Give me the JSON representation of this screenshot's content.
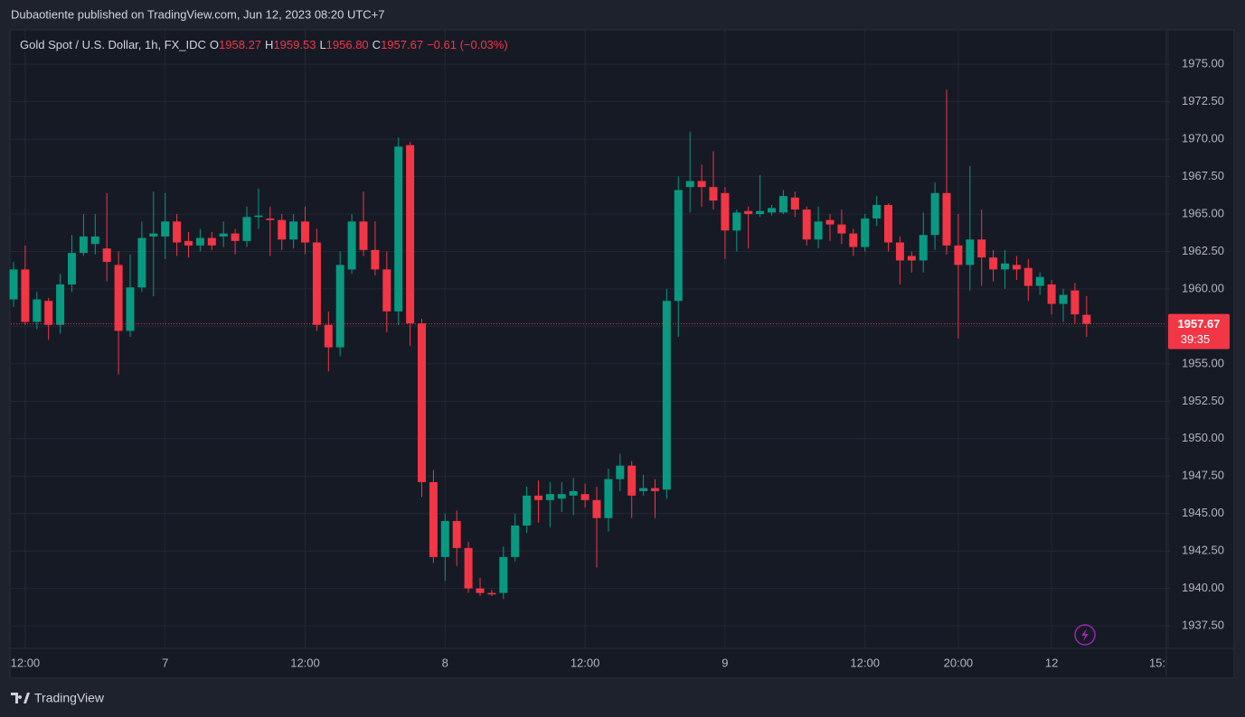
{
  "chart_data": {
    "type": "candlestick",
    "attribution": "Dubaotiente published on TradingView.com, Jun 12, 2023 08:20 UTC+7",
    "title": "Gold Spot / U.S. Dollar, 1h, FX_IDC",
    "ohlc_legend": [
      {
        "key": "O",
        "label": "1958.27"
      },
      {
        "key": "H",
        "label": "1959.53"
      },
      {
        "key": "L",
        "label": "1956.80"
      },
      {
        "key": "C",
        "label": "1957.67"
      }
    ],
    "change_label": "−0.61 (−0.03%)",
    "countdown": "39:35",
    "brand": "TradingView",
    "up_color": "#089981",
    "down_color": "#f23645",
    "categories": [
      null,
      "12:00",
      null,
      null,
      null,
      null,
      null,
      null,
      null,
      null,
      null,
      null,
      null,
      "7",
      null,
      null,
      null,
      null,
      null,
      null,
      null,
      null,
      null,
      null,
      null,
      "12:00",
      null,
      null,
      null,
      null,
      null,
      null,
      null,
      null,
      null,
      null,
      null,
      "8",
      null,
      null,
      null,
      null,
      null,
      null,
      null,
      null,
      null,
      null,
      null,
      "12:00",
      null,
      null,
      null,
      null,
      null,
      null,
      null,
      null,
      null,
      null,
      null,
      "9",
      null,
      null,
      null,
      null,
      null,
      null,
      null,
      null,
      null,
      null,
      null,
      "12:00",
      null,
      null,
      null,
      null,
      null,
      null,
      null,
      "20:00",
      null,
      null,
      null,
      null,
      null,
      null,
      null,
      "12",
      null,
      null,
      null,
      null,
      null,
      null,
      null,
      null,
      null,
      "15:"
    ],
    "open": [
      1959.3,
      1961.3,
      1957.8,
      1959.2,
      1957.6,
      1960.3,
      1962.4,
      1963,
      1962.7,
      1961.6,
      1957.2,
      1960.1,
      1963.5,
      1963.5,
      1964.5,
      1963.2,
      1962.9,
      1963.4,
      1963.5,
      1963.7,
      1963.2,
      1964.8,
      1964.7,
      1964.6,
      1963.3,
      1964.5,
      1963.1,
      1957.6,
      1956.1,
      1961.3,
      1964.5,
      1962.6,
      1961.3,
      1958.5,
      1969.6,
      1957.7,
      1947.1,
      1942.1,
      1944.5,
      1942.7,
      1940,
      1939.7,
      1939.7,
      1942.1,
      1944.2,
      1946.2,
      1945.9,
      1946,
      1946.2,
      1946.3,
      1945.9,
      1944.7,
      1947.3,
      1948.2,
      1946.5,
      1946.7,
      1946.6,
      1959.2,
      1966.8,
      1967.2,
      1966.8,
      1966.4,
      1963.9,
      1965.2,
      1965,
      1965.1,
      1965.1,
      1966.1,
      1965.3,
      1963.3,
      1964.6,
      1964.3,
      1963.7,
      1962.8,
      1964.7,
      1965.6,
      1963.1,
      1962.2,
      1961.9,
      1963.6,
      1966.4,
      1962.9,
      1961.6,
      1963.3,
      1962.1,
      1961.3,
      1961.6,
      1961.4,
      1960.2,
      1960.3,
      1959,
      1959.9,
      1958.27,
      null,
      null,
      null,
      null,
      null,
      null,
      null
    ],
    "high": [
      1961.8,
      1962.9,
      1959.8,
      1959.4,
      1961,
      1963.6,
      1965,
      1965,
      1966.4,
      1962.5,
      1962.3,
      1964.5,
      1966.5,
      1966.4,
      1965,
      1963.8,
      1964,
      1963.8,
      1964.5,
      1964,
      1965.5,
      1966.7,
      1965.5,
      1965,
      1965,
      1965.5,
      1964,
      1958.5,
      1962.5,
      1965,
      1966.5,
      1964.5,
      1962.5,
      1970.1,
      1969.8,
      1958,
      1947.9,
      1945,
      1945.2,
      1943.1,
      1940.7,
      1939.9,
      1942.8,
      1945,
      1946.8,
      1947.2,
      1947.1,
      1947.1,
      1947.4,
      1947,
      1946.8,
      1948,
      1949,
      1948.5,
      1947.6,
      1947.3,
      1960,
      1967.5,
      1970.5,
      1968.3,
      1969.2,
      1966.8,
      1965.3,
      1965.5,
      1967.6,
      1965.6,
      1966.6,
      1966.5,
      1965.5,
      1965.5,
      1965,
      1965.3,
      1964,
      1965,
      1966.2,
      1965.7,
      1963.5,
      1962.5,
      1965.1,
      1967.1,
      1973.3,
      1965,
      1968.2,
      1965.3,
      1962.6,
      1962.6,
      1962.2,
      1962,
      1961.1,
      1960.6,
      1960,
      1960.4,
      1959.53,
      null,
      null,
      null,
      null,
      null,
      null,
      null
    ],
    "low": [
      1958.8,
      1957.6,
      1957.3,
      1956.6,
      1957,
      1959.8,
      1962.2,
      1962.3,
      1960.5,
      1954.3,
      1956.8,
      1959.8,
      1959.5,
      1962,
      1962.2,
      1962.1,
      1962.5,
      1962.6,
      1962.8,
      1962.3,
      1962.8,
      1964,
      1962.2,
      1962.6,
      1962.7,
      1962.3,
      1957.2,
      1954.5,
      1955.5,
      1961,
      1962.2,
      1960.9,
      1957.1,
      1957.6,
      1956.2,
      1946.1,
      1941.7,
      1940.5,
      1941.5,
      1939.7,
      1939.5,
      1939.5,
      1939.3,
      1941.8,
      1943.7,
      1944.4,
      1944.1,
      1945.1,
      1944.9,
      1945.4,
      1941.4,
      1943.8,
      1946.5,
      1944.7,
      1946.2,
      1944.7,
      1946,
      1956.8,
      1965.1,
      1965.5,
      1965.3,
      1962,
      1962.5,
      1962.7,
      1964.8,
      1964.9,
      1965,
      1964.8,
      1962.9,
      1962.7,
      1963.2,
      1963,
      1962.2,
      1962.5,
      1964.2,
      1962.5,
      1960.3,
      1961.1,
      1961.1,
      1962.6,
      1962.3,
      1956.7,
      1959.9,
      1960.2,
      1960.5,
      1960,
      1960.6,
      1959.2,
      1959.6,
      1958.3,
      1957.8,
      1957.7,
      1956.8,
      null,
      null,
      null,
      null,
      null,
      null,
      null
    ],
    "close": [
      1961.3,
      1957.8,
      1959.3,
      1957.6,
      1960.3,
      1962.4,
      1963.5,
      1963.5,
      1961.8,
      1957.2,
      1960.1,
      1963.4,
      1963.7,
      1964.5,
      1963.1,
      1962.9,
      1963.4,
      1962.9,
      1963.7,
      1963.2,
      1964.8,
      1964.9,
      1964.6,
      1963.3,
      1964.5,
      1963.1,
      1957.6,
      1956.1,
      1961.6,
      1964.5,
      1962.6,
      1961.3,
      1958.5,
      1969.5,
      1957.7,
      1947.1,
      1942.1,
      1944.5,
      1942.7,
      1940,
      1939.7,
      1939.6,
      1942.1,
      1944.2,
      1946.2,
      1945.9,
      1946.3,
      1946.3,
      1946.5,
      1945.9,
      1944.7,
      1947.3,
      1948.2,
      1946.2,
      1946.7,
      1946.5,
      1959.2,
      1966.6,
      1967.2,
      1966.8,
      1965.9,
      1963.9,
      1965.1,
      1965,
      1965.2,
      1965.4,
      1966.2,
      1965.3,
      1963.3,
      1964.5,
      1964.3,
      1963.7,
      1962.8,
      1964.7,
      1965.6,
      1963.1,
      1961.9,
      1961.9,
      1963.6,
      1966.4,
      1962.9,
      1961.6,
      1963.3,
      1962.1,
      1961.3,
      1961.7,
      1961.3,
      1960.2,
      1960.8,
      1959,
      1959.6,
      1958.3,
      1957.67,
      null,
      null,
      null,
      null,
      null,
      null,
      null
    ],
    "ylim": [
      1936,
      1977.3
    ],
    "yticks": [
      {
        "value": 1937.5,
        "label": "1937.50"
      },
      {
        "value": 1940,
        "label": "1940.00"
      },
      {
        "value": 1942.5,
        "label": "1942.50"
      },
      {
        "value": 1945,
        "label": "1945.00"
      },
      {
        "value": 1947.5,
        "label": "1947.50"
      },
      {
        "value": 1950,
        "label": "1950.00"
      },
      {
        "value": 1952.5,
        "label": "1952.50"
      },
      {
        "value": 1955,
        "label": "1955.00"
      },
      {
        "value": 1957.5,
        "label": "1957.50"
      },
      {
        "value": 1960,
        "label": "1960.00"
      },
      {
        "value": 1962.5,
        "label": "1962.50"
      },
      {
        "value": 1965,
        "label": "1965.00"
      },
      {
        "value": 1967.5,
        "label": "1967.50"
      },
      {
        "value": 1970,
        "label": "1970.00"
      },
      {
        "value": 1972.5,
        "label": "1972.50"
      },
      {
        "value": 1975,
        "label": "1975.00"
      }
    ],
    "grid": true
  }
}
